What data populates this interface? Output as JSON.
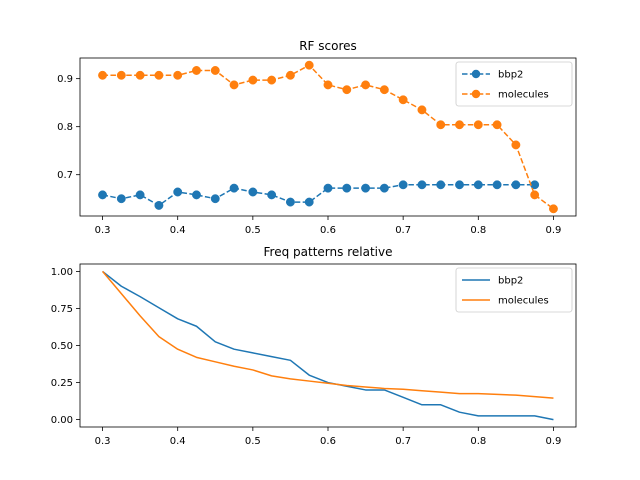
{
  "colors": {
    "series1": "#1f77b4",
    "series2": "#ff7f0e"
  },
  "chart_data": [
    {
      "type": "line",
      "title": "RF scores",
      "xlabel": "",
      "ylabel": "",
      "line_style": "dashed",
      "markers": "circle",
      "legend_position": "top-right",
      "grid": false,
      "xlim": [
        0.27,
        0.93
      ],
      "ylim": [
        0.614,
        0.943
      ],
      "xticks": [
        0.3,
        0.4,
        0.5,
        0.6,
        0.7,
        0.8,
        0.9
      ],
      "xtick_labels": [
        "0.3",
        "0.4",
        "0.5",
        "0.6",
        "0.7",
        "0.8",
        "0.9"
      ],
      "yticks": [
        0.7,
        0.8,
        0.9
      ],
      "ytick_labels": [
        "0.7",
        "0.8",
        "0.9"
      ],
      "x": [
        0.3,
        0.325,
        0.35,
        0.375,
        0.4,
        0.425,
        0.45,
        0.475,
        0.5,
        0.525,
        0.55,
        0.575,
        0.6,
        0.625,
        0.65,
        0.675,
        0.7,
        0.725,
        0.75,
        0.775,
        0.8,
        0.825,
        0.85,
        0.875,
        0.9
      ],
      "series": [
        {
          "name": "bbp2",
          "color": "#1f77b4",
          "values": [
            0.658,
            0.65,
            0.658,
            0.636,
            0.664,
            0.658,
            0.65,
            0.672,
            0.664,
            0.658,
            0.643,
            0.643,
            0.672,
            0.672,
            0.672,
            0.672,
            0.679,
            0.679,
            0.679,
            0.679,
            0.679,
            0.679,
            0.679,
            0.679,
            null
          ]
        },
        {
          "name": "molecules",
          "color": "#ff7f0e",
          "values": [
            0.907,
            0.907,
            0.907,
            0.907,
            0.907,
            0.917,
            0.917,
            0.887,
            0.897,
            0.897,
            0.907,
            0.928,
            0.887,
            0.877,
            0.887,
            0.877,
            0.856,
            0.835,
            0.804,
            0.804,
            0.804,
            0.804,
            0.762,
            0.658,
            0.629
          ]
        }
      ]
    },
    {
      "type": "line",
      "title": "Freq patterns relative",
      "xlabel": "",
      "ylabel": "",
      "line_style": "solid",
      "markers": "none",
      "legend_position": "top-right",
      "grid": false,
      "xlim": [
        0.27,
        0.93
      ],
      "ylim": [
        -0.05,
        1.05
      ],
      "xticks": [
        0.3,
        0.4,
        0.5,
        0.6,
        0.7,
        0.8,
        0.9
      ],
      "xtick_labels": [
        "0.3",
        "0.4",
        "0.5",
        "0.6",
        "0.7",
        "0.8",
        "0.9"
      ],
      "yticks": [
        0.0,
        0.25,
        0.5,
        0.75,
        1.0
      ],
      "ytick_labels": [
        "0.00",
        "0.25",
        "0.50",
        "0.75",
        "1.00"
      ],
      "x": [
        0.3,
        0.325,
        0.35,
        0.375,
        0.4,
        0.425,
        0.45,
        0.475,
        0.5,
        0.525,
        0.55,
        0.575,
        0.6,
        0.625,
        0.65,
        0.675,
        0.7,
        0.725,
        0.75,
        0.775,
        0.8,
        0.825,
        0.85,
        0.875,
        0.9
      ],
      "series": [
        {
          "name": "bbp2",
          "color": "#1f77b4",
          "values": [
            1.0,
            0.9,
            0.83,
            0.755,
            0.68,
            0.63,
            0.525,
            0.475,
            0.45,
            0.425,
            0.4,
            0.3,
            0.25,
            0.225,
            0.2,
            0.2,
            0.15,
            0.1,
            0.1,
            0.05,
            0.025,
            0.025,
            0.025,
            0.025,
            0.0
          ]
        },
        {
          "name": "molecules",
          "color": "#ff7f0e",
          "values": [
            1.0,
            0.85,
            0.7,
            0.56,
            0.475,
            0.42,
            0.39,
            0.36,
            0.335,
            0.295,
            0.275,
            0.26,
            0.245,
            0.23,
            0.22,
            0.21,
            0.205,
            0.195,
            0.185,
            0.175,
            0.175,
            0.17,
            0.165,
            0.155,
            0.145
          ]
        }
      ]
    }
  ]
}
